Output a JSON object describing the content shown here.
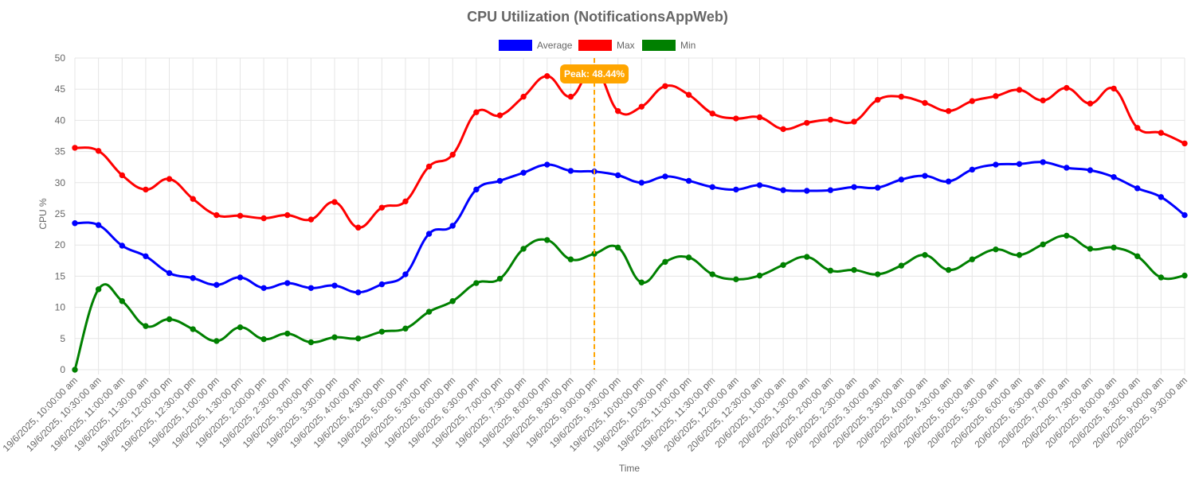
{
  "chart_data": {
    "type": "line",
    "title": "CPU Utilization (NotificationsAppWeb)",
    "xlabel": "Time",
    "ylabel": "CPU %",
    "ylim": [
      0,
      50
    ],
    "yticks": [
      0,
      5,
      10,
      15,
      20,
      25,
      30,
      35,
      40,
      45,
      50
    ],
    "grid": true,
    "legend_position": "top-center",
    "categories": [
      "19/6/2025, 10:00:00 am",
      "19/6/2025, 10:30:00 am",
      "19/6/2025, 11:00:00 am",
      "19/6/2025, 11:30:00 am",
      "19/6/2025, 12:00:00 pm",
      "19/6/2025, 12:30:00 pm",
      "19/6/2025, 1:00:00 pm",
      "19/6/2025, 1:30:00 pm",
      "19/6/2025, 2:00:00 pm",
      "19/6/2025, 2:30:00 pm",
      "19/6/2025, 3:00:00 pm",
      "19/6/2025, 3:30:00 pm",
      "19/6/2025, 4:00:00 pm",
      "19/6/2025, 4:30:00 pm",
      "19/6/2025, 5:00:00 pm",
      "19/6/2025, 5:30:00 pm",
      "19/6/2025, 6:00:00 pm",
      "19/6/2025, 6:30:00 pm",
      "19/6/2025, 7:00:00 pm",
      "19/6/2025, 7:30:00 pm",
      "19/6/2025, 8:00:00 pm",
      "19/6/2025, 8:30:00 pm",
      "19/6/2025, 9:00:00 pm",
      "19/6/2025, 9:30:00 pm",
      "19/6/2025, 10:00:00 pm",
      "19/6/2025, 10:30:00 pm",
      "19/6/2025, 11:00:00 pm",
      "19/6/2025, 11:30:00 pm",
      "20/6/2025, 12:00:00 am",
      "20/6/2025, 12:30:00 am",
      "20/6/2025, 1:00:00 am",
      "20/6/2025, 1:30:00 am",
      "20/6/2025, 2:00:00 am",
      "20/6/2025, 2:30:00 am",
      "20/6/2025, 3:00:00 am",
      "20/6/2025, 3:30:00 am",
      "20/6/2025, 4:00:00 am",
      "20/6/2025, 4:30:00 am",
      "20/6/2025, 5:00:00 am",
      "20/6/2025, 5:30:00 am",
      "20/6/2025, 6:00:00 am",
      "20/6/2025, 6:30:00 am",
      "20/6/2025, 7:00:00 am",
      "20/6/2025, 7:30:00 am",
      "20/6/2025, 8:00:00 am",
      "20/6/2025, 8:30:00 am",
      "20/6/2025, 9:00:00 am",
      "20/6/2025, 9:30:00 am"
    ],
    "series": [
      {
        "name": "Average",
        "color": "#0000ff",
        "values": [
          23.5,
          23.2,
          19.9,
          18.2,
          15.5,
          14.7,
          13.6,
          14.8,
          13.1,
          13.9,
          13.1,
          13.5,
          12.4,
          13.7,
          15.3,
          21.8,
          23.1,
          28.9,
          30.3,
          31.6,
          32.9,
          31.9,
          31.8,
          31.2,
          30.0,
          31.0,
          30.3,
          29.3,
          28.9,
          29.6,
          28.8,
          28.7,
          28.8,
          29.3,
          29.2,
          30.5,
          31.1,
          30.2,
          32.1,
          32.9,
          33.0,
          33.3,
          32.4,
          32.0,
          30.9,
          29.1,
          27.7,
          24.8
        ]
      },
      {
        "name": "Max",
        "color": "#ff0000",
        "values": [
          35.6,
          35.1,
          31.2,
          28.9,
          30.6,
          27.4,
          24.8,
          24.7,
          24.3,
          24.8,
          24.1,
          26.9,
          22.8,
          26.0,
          27.0,
          32.6,
          34.5,
          41.3,
          40.8,
          43.8,
          47.1,
          43.8,
          48.44,
          41.5,
          42.2,
          45.5,
          44.1,
          41.1,
          40.3,
          40.5,
          38.6,
          39.6,
          40.1,
          39.8,
          43.3,
          43.8,
          42.8,
          41.5,
          43.1,
          43.9,
          44.9,
          43.2,
          45.2,
          42.7,
          45.1,
          38.8,
          38.0,
          36.3
        ]
      },
      {
        "name": "Min",
        "color": "#008000",
        "values": [
          0,
          12.9,
          11.0,
          7.0,
          8.1,
          6.5,
          4.6,
          6.8,
          4.9,
          5.8,
          4.4,
          5.2,
          5.0,
          6.1,
          6.6,
          9.3,
          11.0,
          13.9,
          14.6,
          19.4,
          20.8,
          17.7,
          18.6,
          19.6,
          14.0,
          17.3,
          18.0,
          15.3,
          14.5,
          15.1,
          16.8,
          18.1,
          15.9,
          16.0,
          15.3,
          16.7,
          18.4,
          16.0,
          17.7,
          19.3,
          18.4,
          20.1,
          21.5,
          19.4,
          19.6,
          18.2,
          14.8,
          15.1
        ]
      }
    ],
    "annotation": {
      "text": "Peak: 48.44%",
      "category_index": 22,
      "value": 48.44,
      "line_color": "#ffa500",
      "box_color": "#ffa500"
    }
  }
}
